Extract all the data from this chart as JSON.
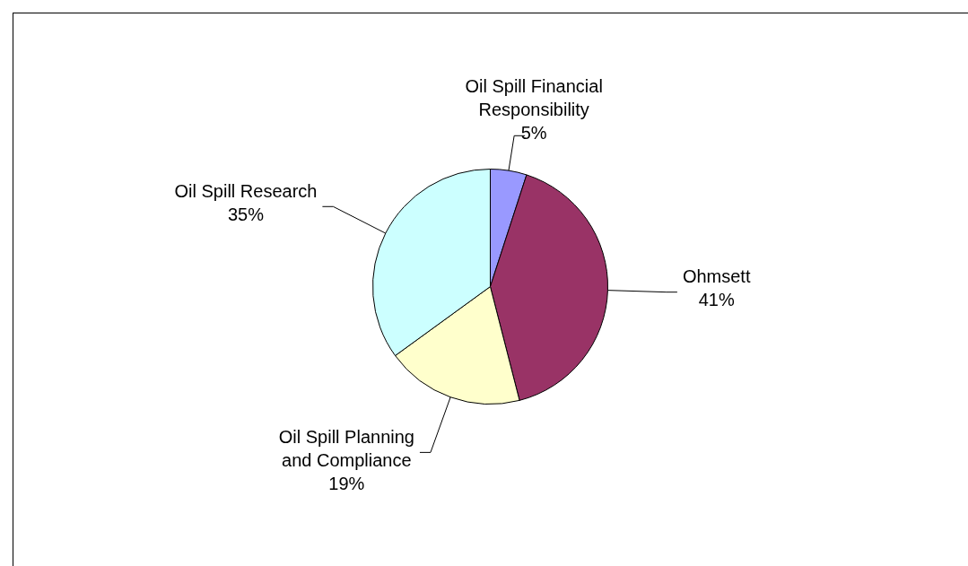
{
  "chart_data": {
    "type": "pie",
    "categories": [
      "Oil Spill Financial Responsibility",
      "Ohmsett",
      "Oil Spill Planning and Compliance",
      "Oil Spill Research"
    ],
    "values": [
      5,
      41,
      19,
      35
    ],
    "colors": [
      "#9999ff",
      "#993366",
      "#ffffcc",
      "#ccffff"
    ],
    "value_labels": [
      "5%",
      "41%",
      "19%",
      "35%"
    ],
    "legend": false
  }
}
